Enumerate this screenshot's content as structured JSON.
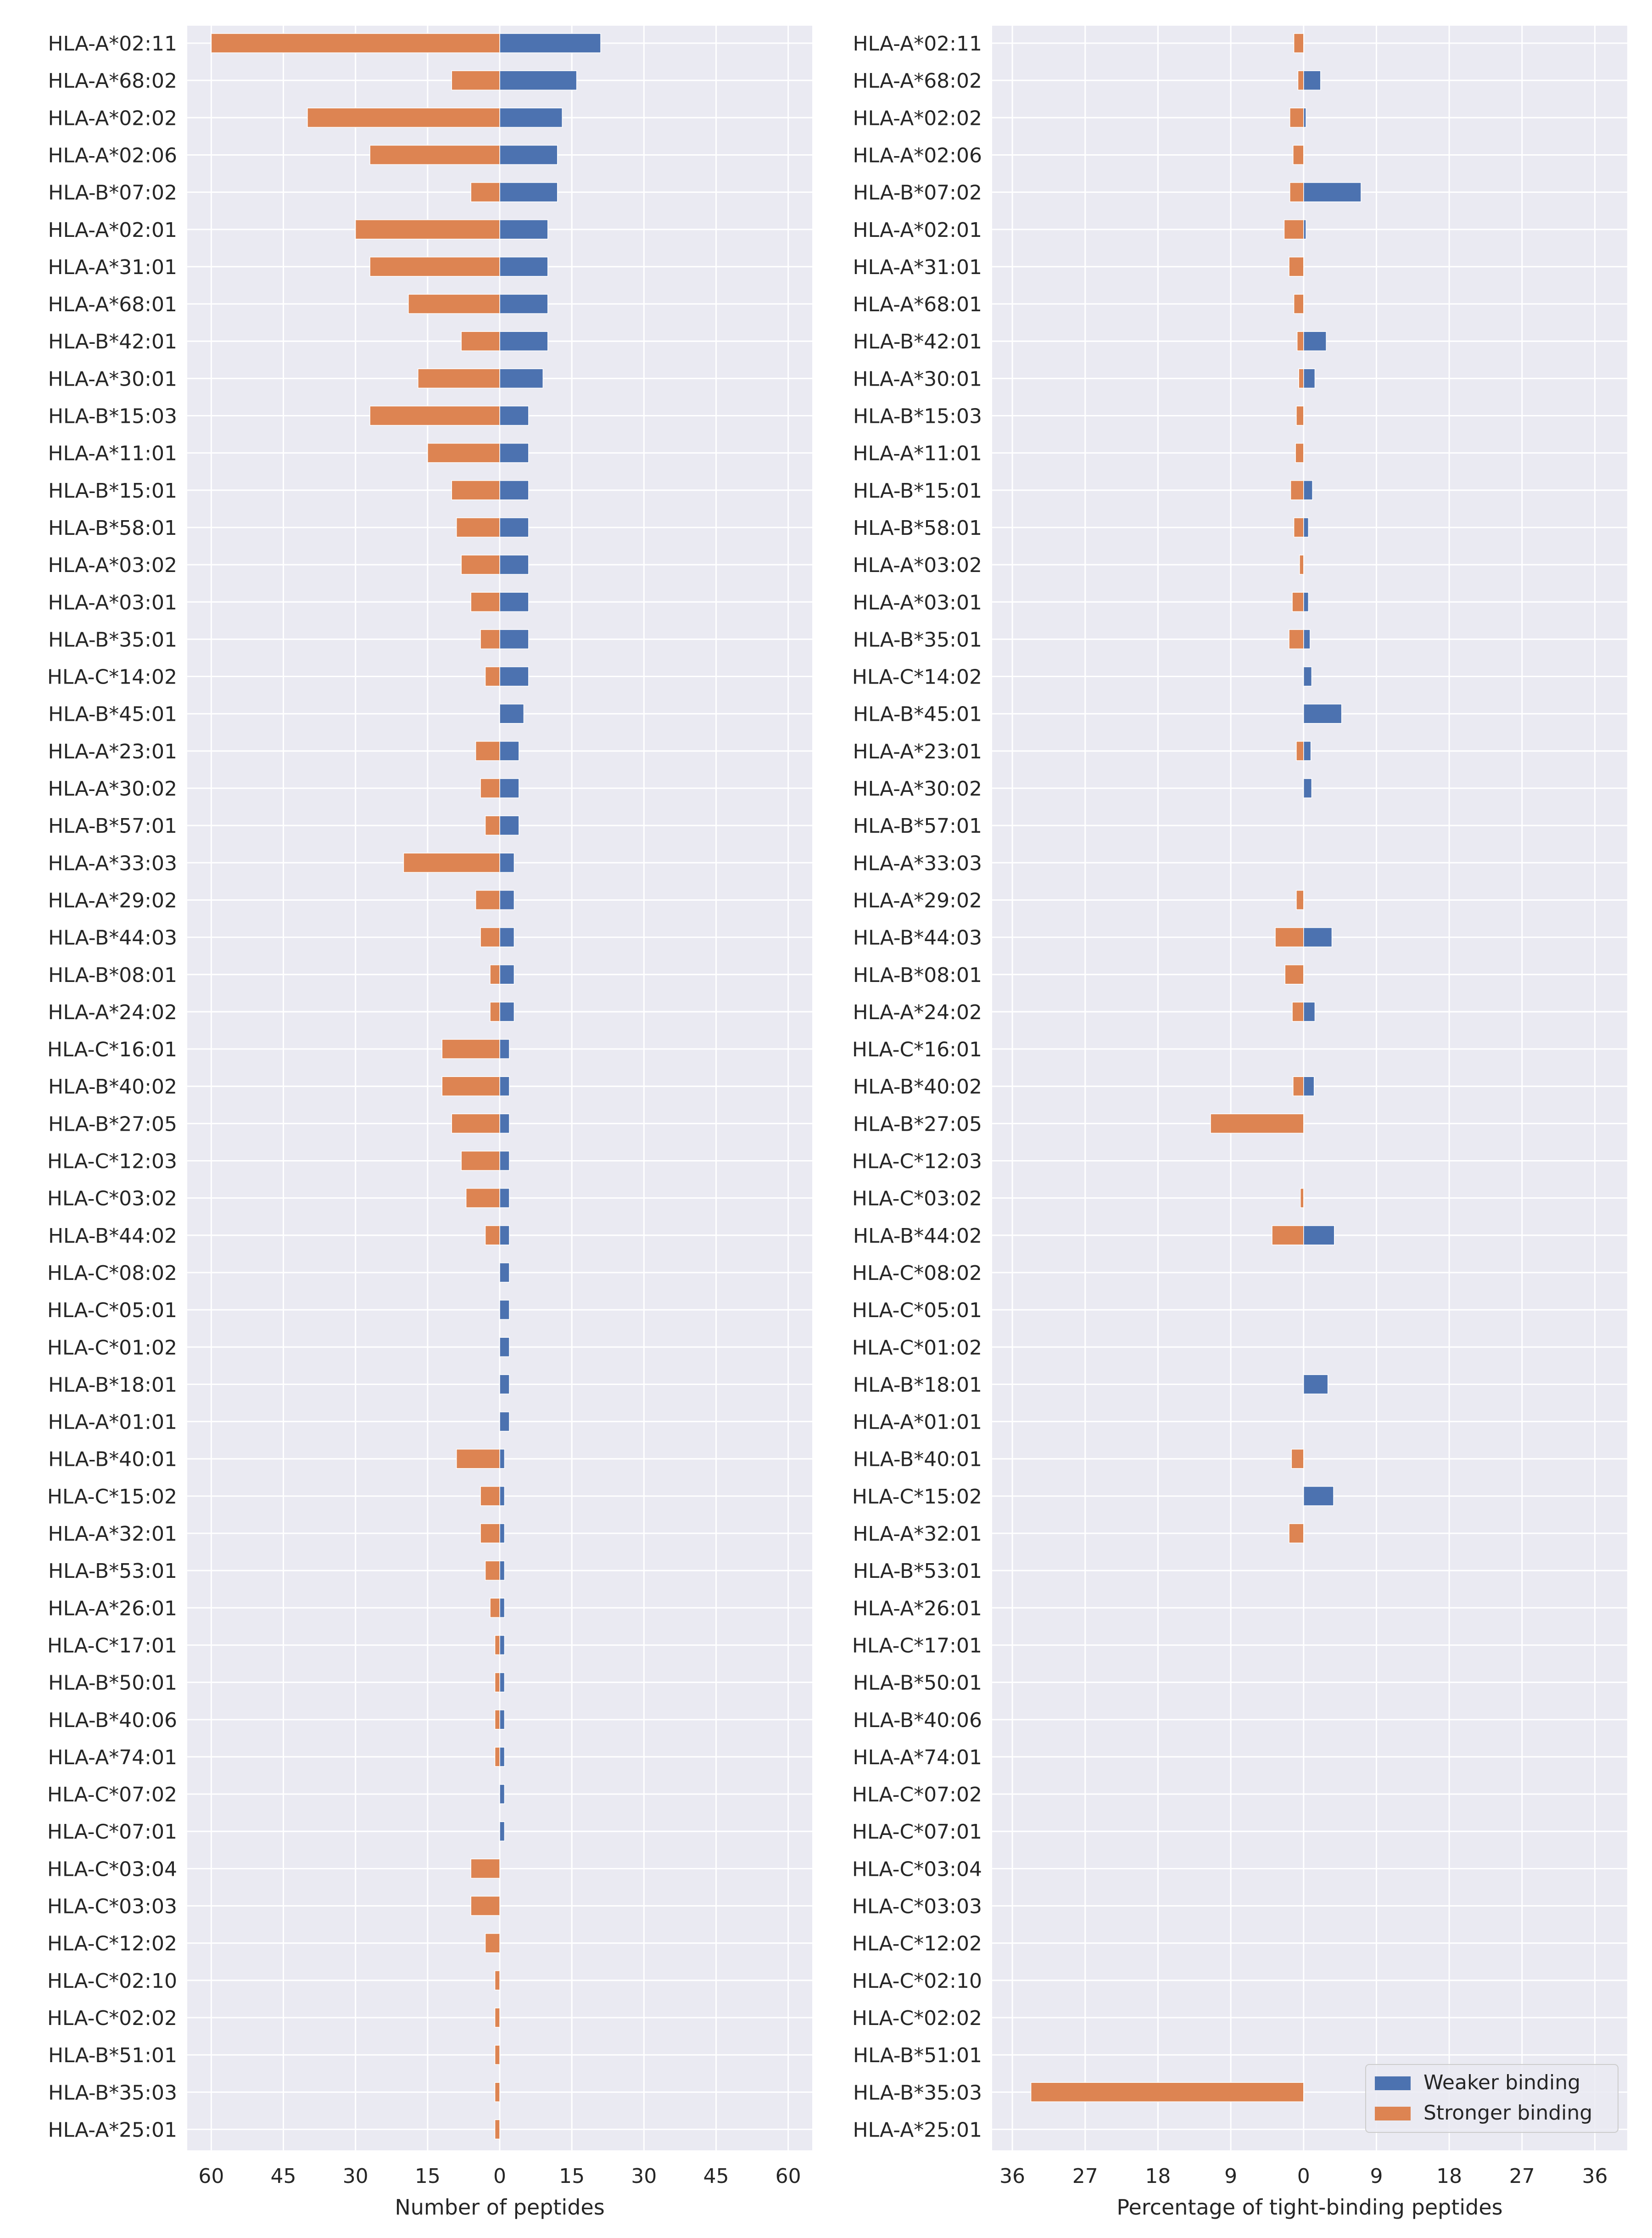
{
  "chart_data": [
    {
      "type": "bar",
      "orientation": "horizontal",
      "xlabel": "Number of peptides",
      "xlim": [
        -65,
        65
      ],
      "xticks": [
        -60,
        -45,
        -30,
        -15,
        0,
        15,
        30,
        45,
        60
      ],
      "xtick_labels": [
        "60",
        "45",
        "30",
        "15",
        "0",
        "15",
        "30",
        "45",
        "60"
      ],
      "grid": true,
      "categories": [
        "HLA-A*02:11",
        "HLA-A*68:02",
        "HLA-A*02:02",
        "HLA-A*02:06",
        "HLA-B*07:02",
        "HLA-A*02:01",
        "HLA-A*31:01",
        "HLA-A*68:01",
        "HLA-B*42:01",
        "HLA-A*30:01",
        "HLA-B*15:03",
        "HLA-A*11:01",
        "HLA-B*15:01",
        "HLA-B*58:01",
        "HLA-A*03:02",
        "HLA-A*03:01",
        "HLA-B*35:01",
        "HLA-C*14:02",
        "HLA-B*45:01",
        "HLA-A*23:01",
        "HLA-A*30:02",
        "HLA-B*57:01",
        "HLA-A*33:03",
        "HLA-A*29:02",
        "HLA-B*44:03",
        "HLA-B*08:01",
        "HLA-A*24:02",
        "HLA-C*16:01",
        "HLA-B*40:02",
        "HLA-B*27:05",
        "HLA-C*12:03",
        "HLA-C*03:02",
        "HLA-B*44:02",
        "HLA-C*08:02",
        "HLA-C*05:01",
        "HLA-C*01:02",
        "HLA-B*18:01",
        "HLA-A*01:01",
        "HLA-B*40:01",
        "HLA-C*15:02",
        "HLA-A*32:01",
        "HLA-B*53:01",
        "HLA-A*26:01",
        "HLA-C*17:01",
        "HLA-B*50:01",
        "HLA-B*40:06",
        "HLA-A*74:01",
        "HLA-C*07:02",
        "HLA-C*07:01",
        "HLA-C*03:04",
        "HLA-C*03:03",
        "HLA-C*12:02",
        "HLA-C*02:10",
        "HLA-C*02:02",
        "HLA-B*51:01",
        "HLA-B*35:03",
        "HLA-A*25:01"
      ],
      "series": [
        {
          "name": "Weaker binding",
          "color": "#4c72b0",
          "values": [
            21,
            16,
            13,
            12,
            12,
            10,
            10,
            10,
            10,
            9,
            6,
            6,
            6,
            6,
            6,
            6,
            6,
            6,
            5,
            4,
            4,
            4,
            3,
            3,
            3,
            3,
            3,
            2,
            2,
            2,
            2,
            2,
            2,
            2,
            2,
            2,
            2,
            2,
            1,
            1,
            1,
            1,
            1,
            1,
            1,
            1,
            1,
            1,
            1,
            0,
            0,
            0,
            0,
            0,
            0,
            0,
            0
          ]
        },
        {
          "name": "Stronger binding",
          "color": "#dd8452",
          "values": [
            -60,
            -10,
            -40,
            -27,
            -6,
            -30,
            -27,
            -19,
            -8,
            -17,
            -27,
            -15,
            -10,
            -9,
            -8,
            -6,
            -4,
            -3,
            0,
            -5,
            -4,
            -3,
            -20,
            -5,
            -4,
            -2,
            -2,
            -12,
            -12,
            -10,
            -8,
            -7,
            -3,
            0,
            0,
            0,
            0,
            0,
            -9,
            -4,
            -4,
            -3,
            -2,
            -1,
            -1,
            -1,
            -1,
            0,
            0,
            -6,
            -6,
            -3,
            -1,
            -1,
            -1,
            -1,
            -1
          ]
        }
      ]
    },
    {
      "type": "bar",
      "orientation": "horizontal",
      "xlabel": "Percentage of tight-binding peptides",
      "xlim": [
        -38.5,
        40
      ],
      "xticks": [
        -36,
        -27,
        -18,
        -9,
        0,
        9,
        18,
        27,
        36
      ],
      "xtick_labels": [
        "36",
        "27",
        "18",
        "9",
        "0",
        "9",
        "18",
        "27",
        "36"
      ],
      "grid": true,
      "legend_position": "bottom-right",
      "categories": [
        "HLA-A*02:11",
        "HLA-A*68:02",
        "HLA-A*02:02",
        "HLA-A*02:06",
        "HLA-B*07:02",
        "HLA-A*02:01",
        "HLA-A*31:01",
        "HLA-A*68:01",
        "HLA-B*42:01",
        "HLA-A*30:01",
        "HLA-B*15:03",
        "HLA-A*11:01",
        "HLA-B*15:01",
        "HLA-B*58:01",
        "HLA-A*03:02",
        "HLA-A*03:01",
        "HLA-B*35:01",
        "HLA-C*14:02",
        "HLA-B*45:01",
        "HLA-A*23:01",
        "HLA-A*30:02",
        "HLA-B*57:01",
        "HLA-A*33:03",
        "HLA-A*29:02",
        "HLA-B*44:03",
        "HLA-B*08:01",
        "HLA-A*24:02",
        "HLA-C*16:01",
        "HLA-B*40:02",
        "HLA-B*27:05",
        "HLA-C*12:03",
        "HLA-C*03:02",
        "HLA-B*44:02",
        "HLA-C*08:02",
        "HLA-C*05:01",
        "HLA-C*01:02",
        "HLA-B*18:01",
        "HLA-A*01:01",
        "HLA-B*40:01",
        "HLA-C*15:02",
        "HLA-A*32:01",
        "HLA-B*53:01",
        "HLA-A*26:01",
        "HLA-C*17:01",
        "HLA-B*50:01",
        "HLA-B*40:06",
        "HLA-A*74:01",
        "HLA-C*07:02",
        "HLA-C*07:01",
        "HLA-C*03:04",
        "HLA-C*03:03",
        "HLA-C*12:02",
        "HLA-C*02:10",
        "HLA-C*02:02",
        "HLA-B*51:01",
        "HLA-B*35:03",
        "HLA-A*25:01"
      ],
      "series": [
        {
          "name": "Weaker binding",
          "color": "#4c72b0",
          "values": [
            0,
            2.1,
            0.3,
            0,
            7.1,
            0.3,
            0,
            0,
            2.8,
            1.4,
            0,
            0,
            1.1,
            0.6,
            0,
            0.6,
            0.8,
            1.0,
            4.7,
            0.9,
            1.0,
            0,
            0,
            0,
            3.5,
            0,
            1.4,
            0,
            1.3,
            0,
            0,
            0,
            3.8,
            0,
            0,
            0,
            3.0,
            0,
            0,
            3.7,
            0,
            0,
            0,
            0,
            0,
            0,
            0,
            0,
            0,
            0,
            0,
            0,
            0,
            0,
            0,
            0,
            0
          ]
        },
        {
          "name": "Stronger binding",
          "color": "#dd8452",
          "values": [
            -1.2,
            -0.7,
            -1.7,
            -1.3,
            -1.7,
            -2.4,
            -1.8,
            -1.2,
            -0.8,
            -0.6,
            -0.9,
            -1.0,
            -1.6,
            -1.2,
            -0.5,
            -1.4,
            -1.8,
            0,
            0,
            -0.9,
            0,
            0,
            0,
            -0.9,
            -3.5,
            -2.3,
            -1.4,
            0,
            -1.3,
            -11.5,
            0,
            -0.4,
            -3.9,
            0,
            0,
            0,
            0,
            0,
            -1.5,
            0,
            -1.8,
            0,
            0,
            0,
            0,
            0,
            0,
            0,
            0,
            0,
            0,
            0,
            0,
            0,
            0,
            -33.7,
            0
          ]
        }
      ]
    }
  ]
}
